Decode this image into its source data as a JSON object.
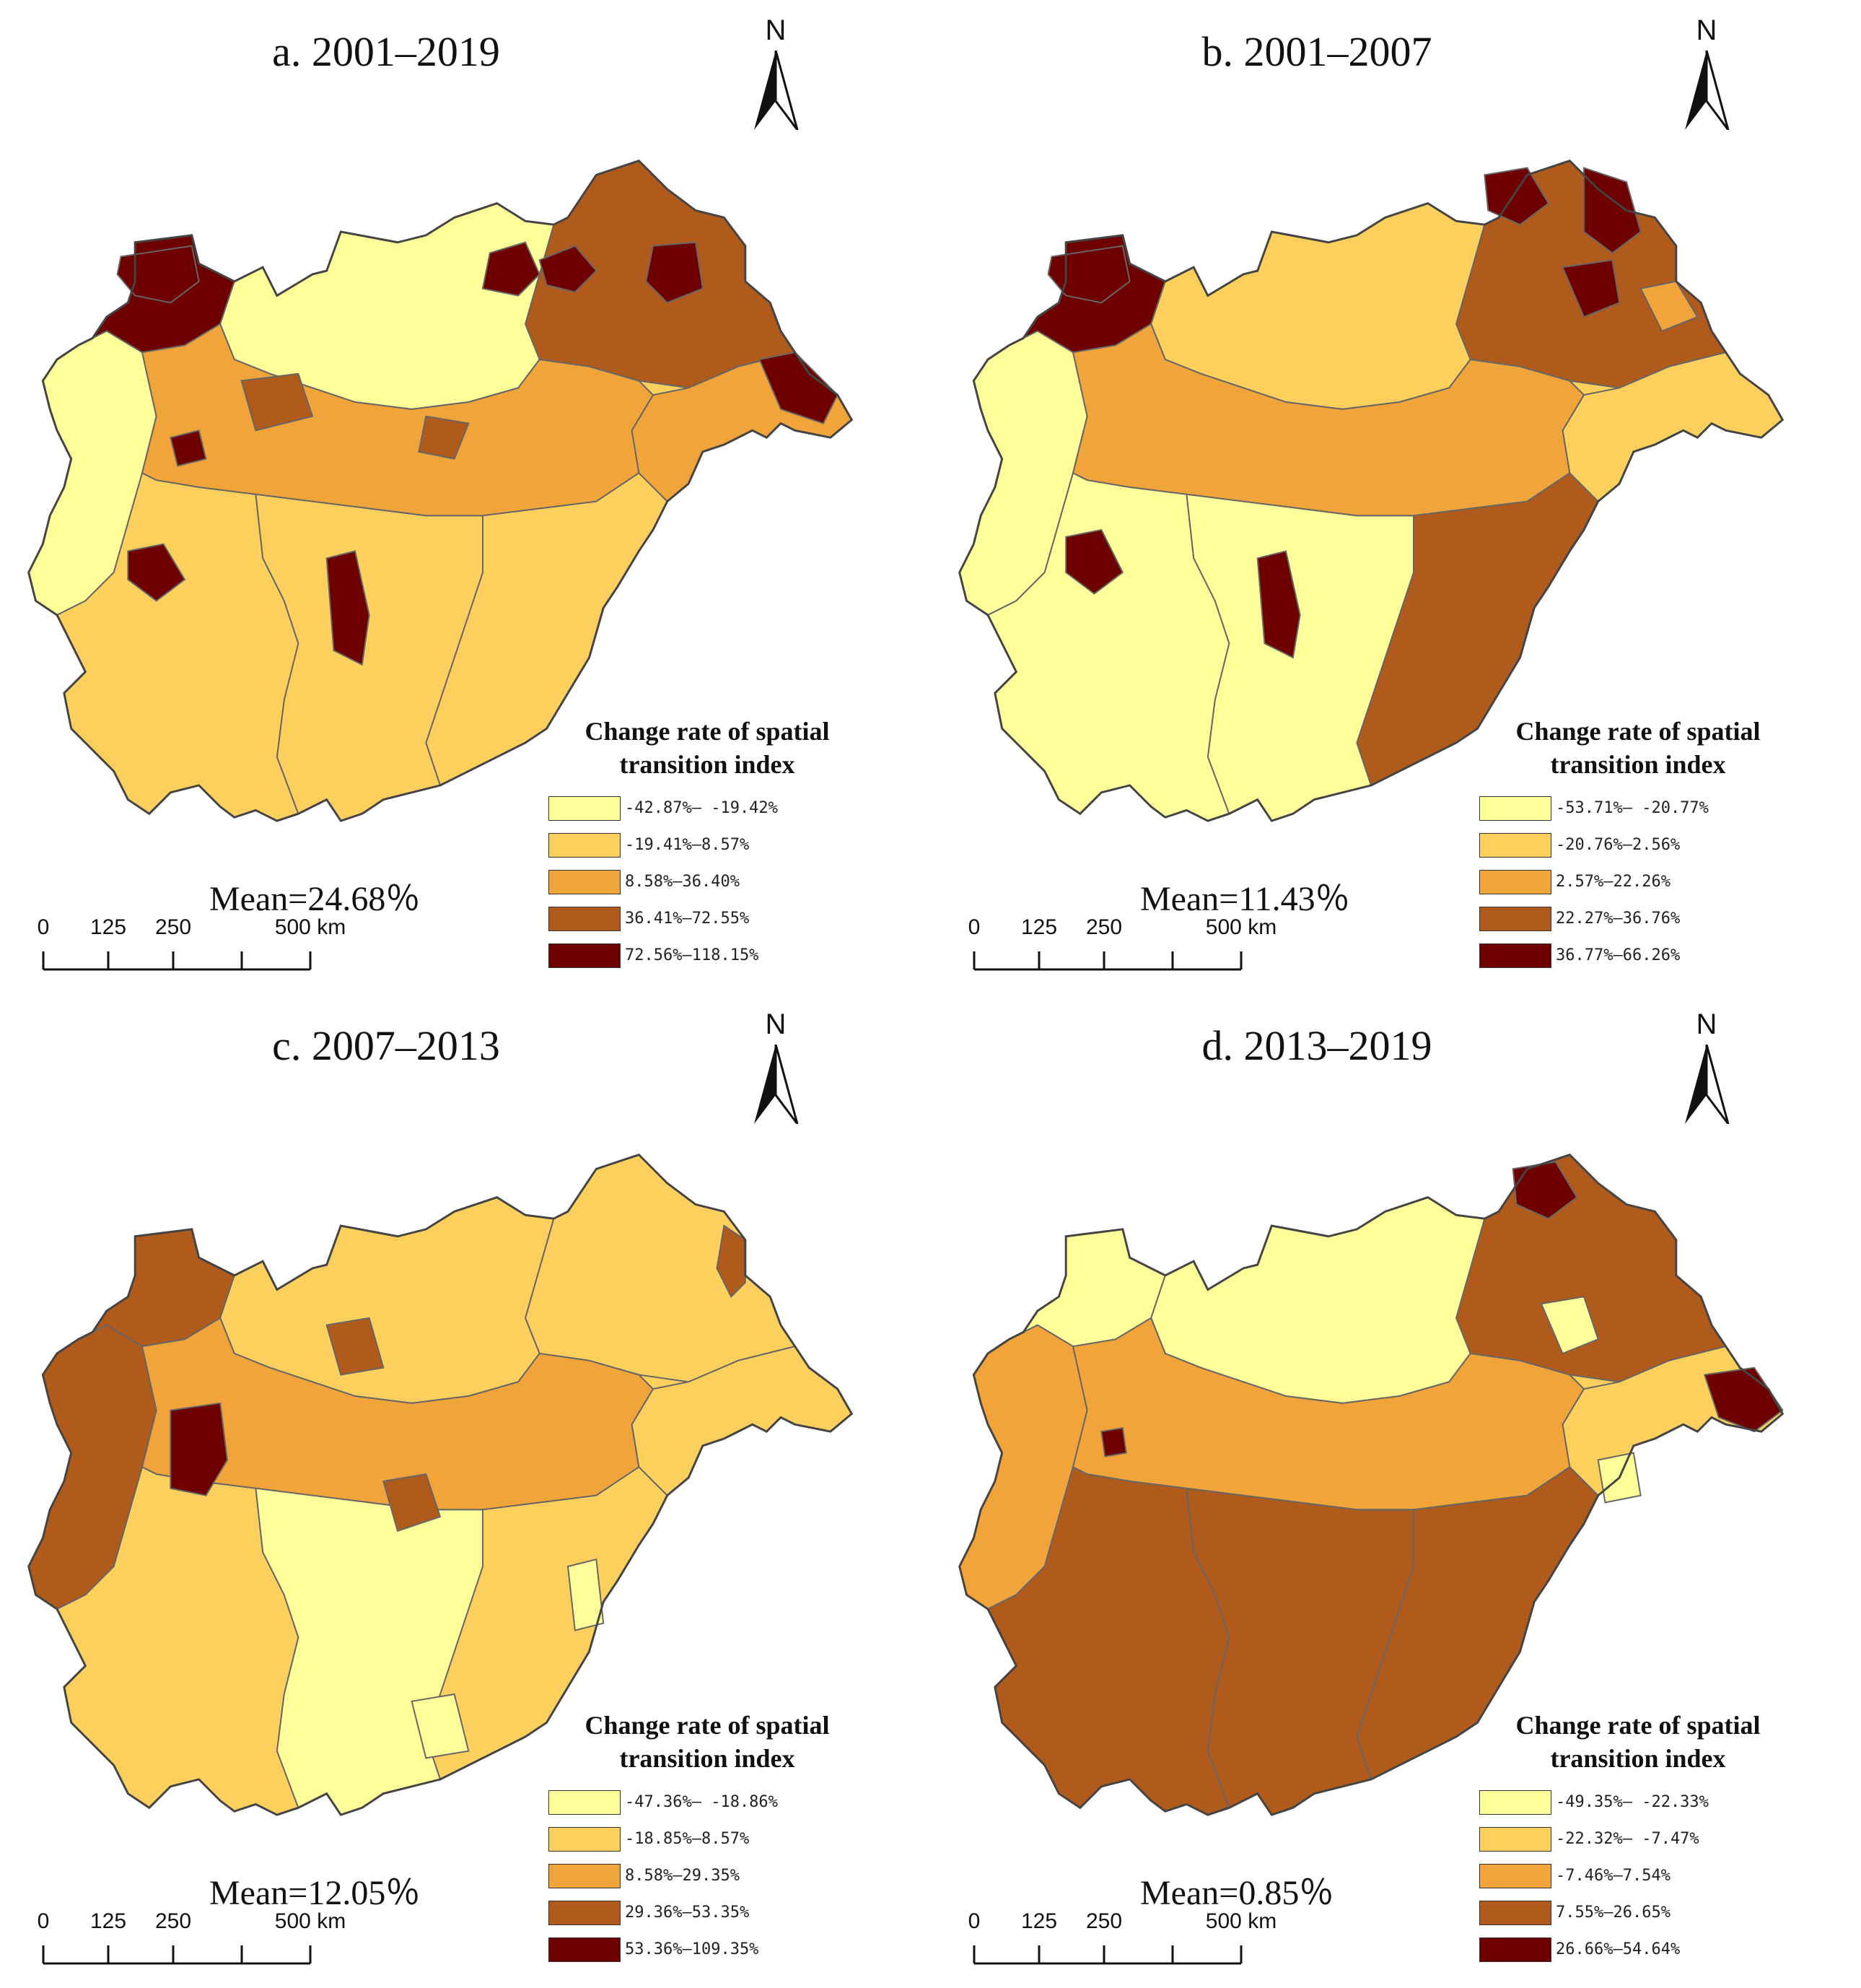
{
  "colors": [
    "#ffff99",
    "#fdd05e",
    "#f0a43a",
    "#b05a1c",
    "#6e0000"
  ],
  "common": {
    "north_label": "N",
    "legend_title_line1": "Change rate of spatial",
    "legend_title_line2": "transition index",
    "scale_ticks": [
      "0",
      "125",
      "250",
      "500 km"
    ]
  },
  "panels": [
    {
      "title": "a. 2001–2019",
      "mean": "Mean=24.68％",
      "legend": [
        "-42.87%— -19.42%",
        "-19.41%—8.57%",
        "8.58%—36.40%",
        "36.41%—72.55%",
        "72.56%—118.15%"
      ]
    },
    {
      "title": "b. 2001–2007",
      "mean": "Mean=11.43％",
      "legend": [
        "-53.71%— -20.77%",
        "-20.76%—2.56%",
        "2.57%—22.26%",
        "22.27%—36.76%",
        "36.77%—66.26%"
      ]
    },
    {
      "title": "c. 2007–2013",
      "mean": "Mean=12.05％",
      "legend": [
        "-47.36%— -18.86%",
        "-18.85%—8.57%",
        "8.58%—29.35%",
        "29.36%—53.35%",
        "53.36%—109.35%"
      ]
    },
    {
      "title": "d. 2013–2019",
      "mean": "Mean=0.85％",
      "legend": [
        "-49.35%— -22.33%",
        "-22.32%— -7.47%",
        "-7.46%—7.54%",
        "7.55%—26.65%",
        "26.66%—54.64%"
      ]
    }
  ]
}
